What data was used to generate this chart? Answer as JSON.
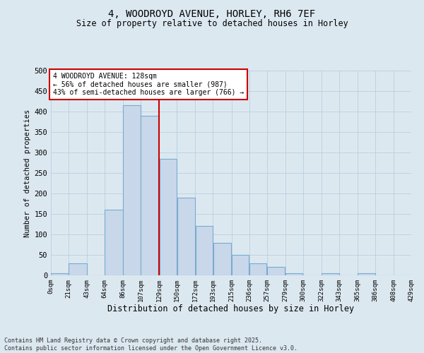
{
  "title_line1": "4, WOODROYD AVENUE, HORLEY, RH6 7EF",
  "title_line2": "Size of property relative to detached houses in Horley",
  "xlabel": "Distribution of detached houses by size in Horley",
  "ylabel": "Number of detached properties",
  "bar_color": "#c8d8ea",
  "bar_edge_color": "#7aabcf",
  "grid_color": "#b8cfe0",
  "vline_color": "#cc0000",
  "vline_x": 129,
  "annotation_box_color": "#cc0000",
  "annotation_lines": [
    "4 WOODROYD AVENUE: 128sqm",
    "← 56% of detached houses are smaller (987)",
    "43% of semi-detached houses are larger (766) →"
  ],
  "footer_line1": "Contains HM Land Registry data © Crown copyright and database right 2025.",
  "footer_line2": "Contains public sector information licensed under the Open Government Licence v3.0.",
  "background_color": "#dce8f0",
  "plot_background_color": "#dce8f0",
  "bin_edges": [
    0,
    21,
    43,
    64,
    86,
    107,
    129,
    150,
    172,
    193,
    215,
    236,
    257,
    279,
    300,
    322,
    343,
    365,
    386,
    408,
    429
  ],
  "bin_heights": [
    5,
    30,
    0,
    160,
    415,
    390,
    285,
    190,
    120,
    80,
    50,
    30,
    20,
    5,
    0,
    5,
    0,
    5,
    0,
    0
  ],
  "ylim": [
    0,
    500
  ],
  "yticks": [
    0,
    50,
    100,
    150,
    200,
    250,
    300,
    350,
    400,
    450,
    500
  ],
  "tick_labels": [
    "0sqm",
    "21sqm",
    "43sqm",
    "64sqm",
    "86sqm",
    "107sqm",
    "129sqm",
    "150sqm",
    "172sqm",
    "193sqm",
    "215sqm",
    "236sqm",
    "257sqm",
    "279sqm",
    "300sqm",
    "322sqm",
    "343sqm",
    "365sqm",
    "386sqm",
    "408sqm",
    "429sqm"
  ]
}
